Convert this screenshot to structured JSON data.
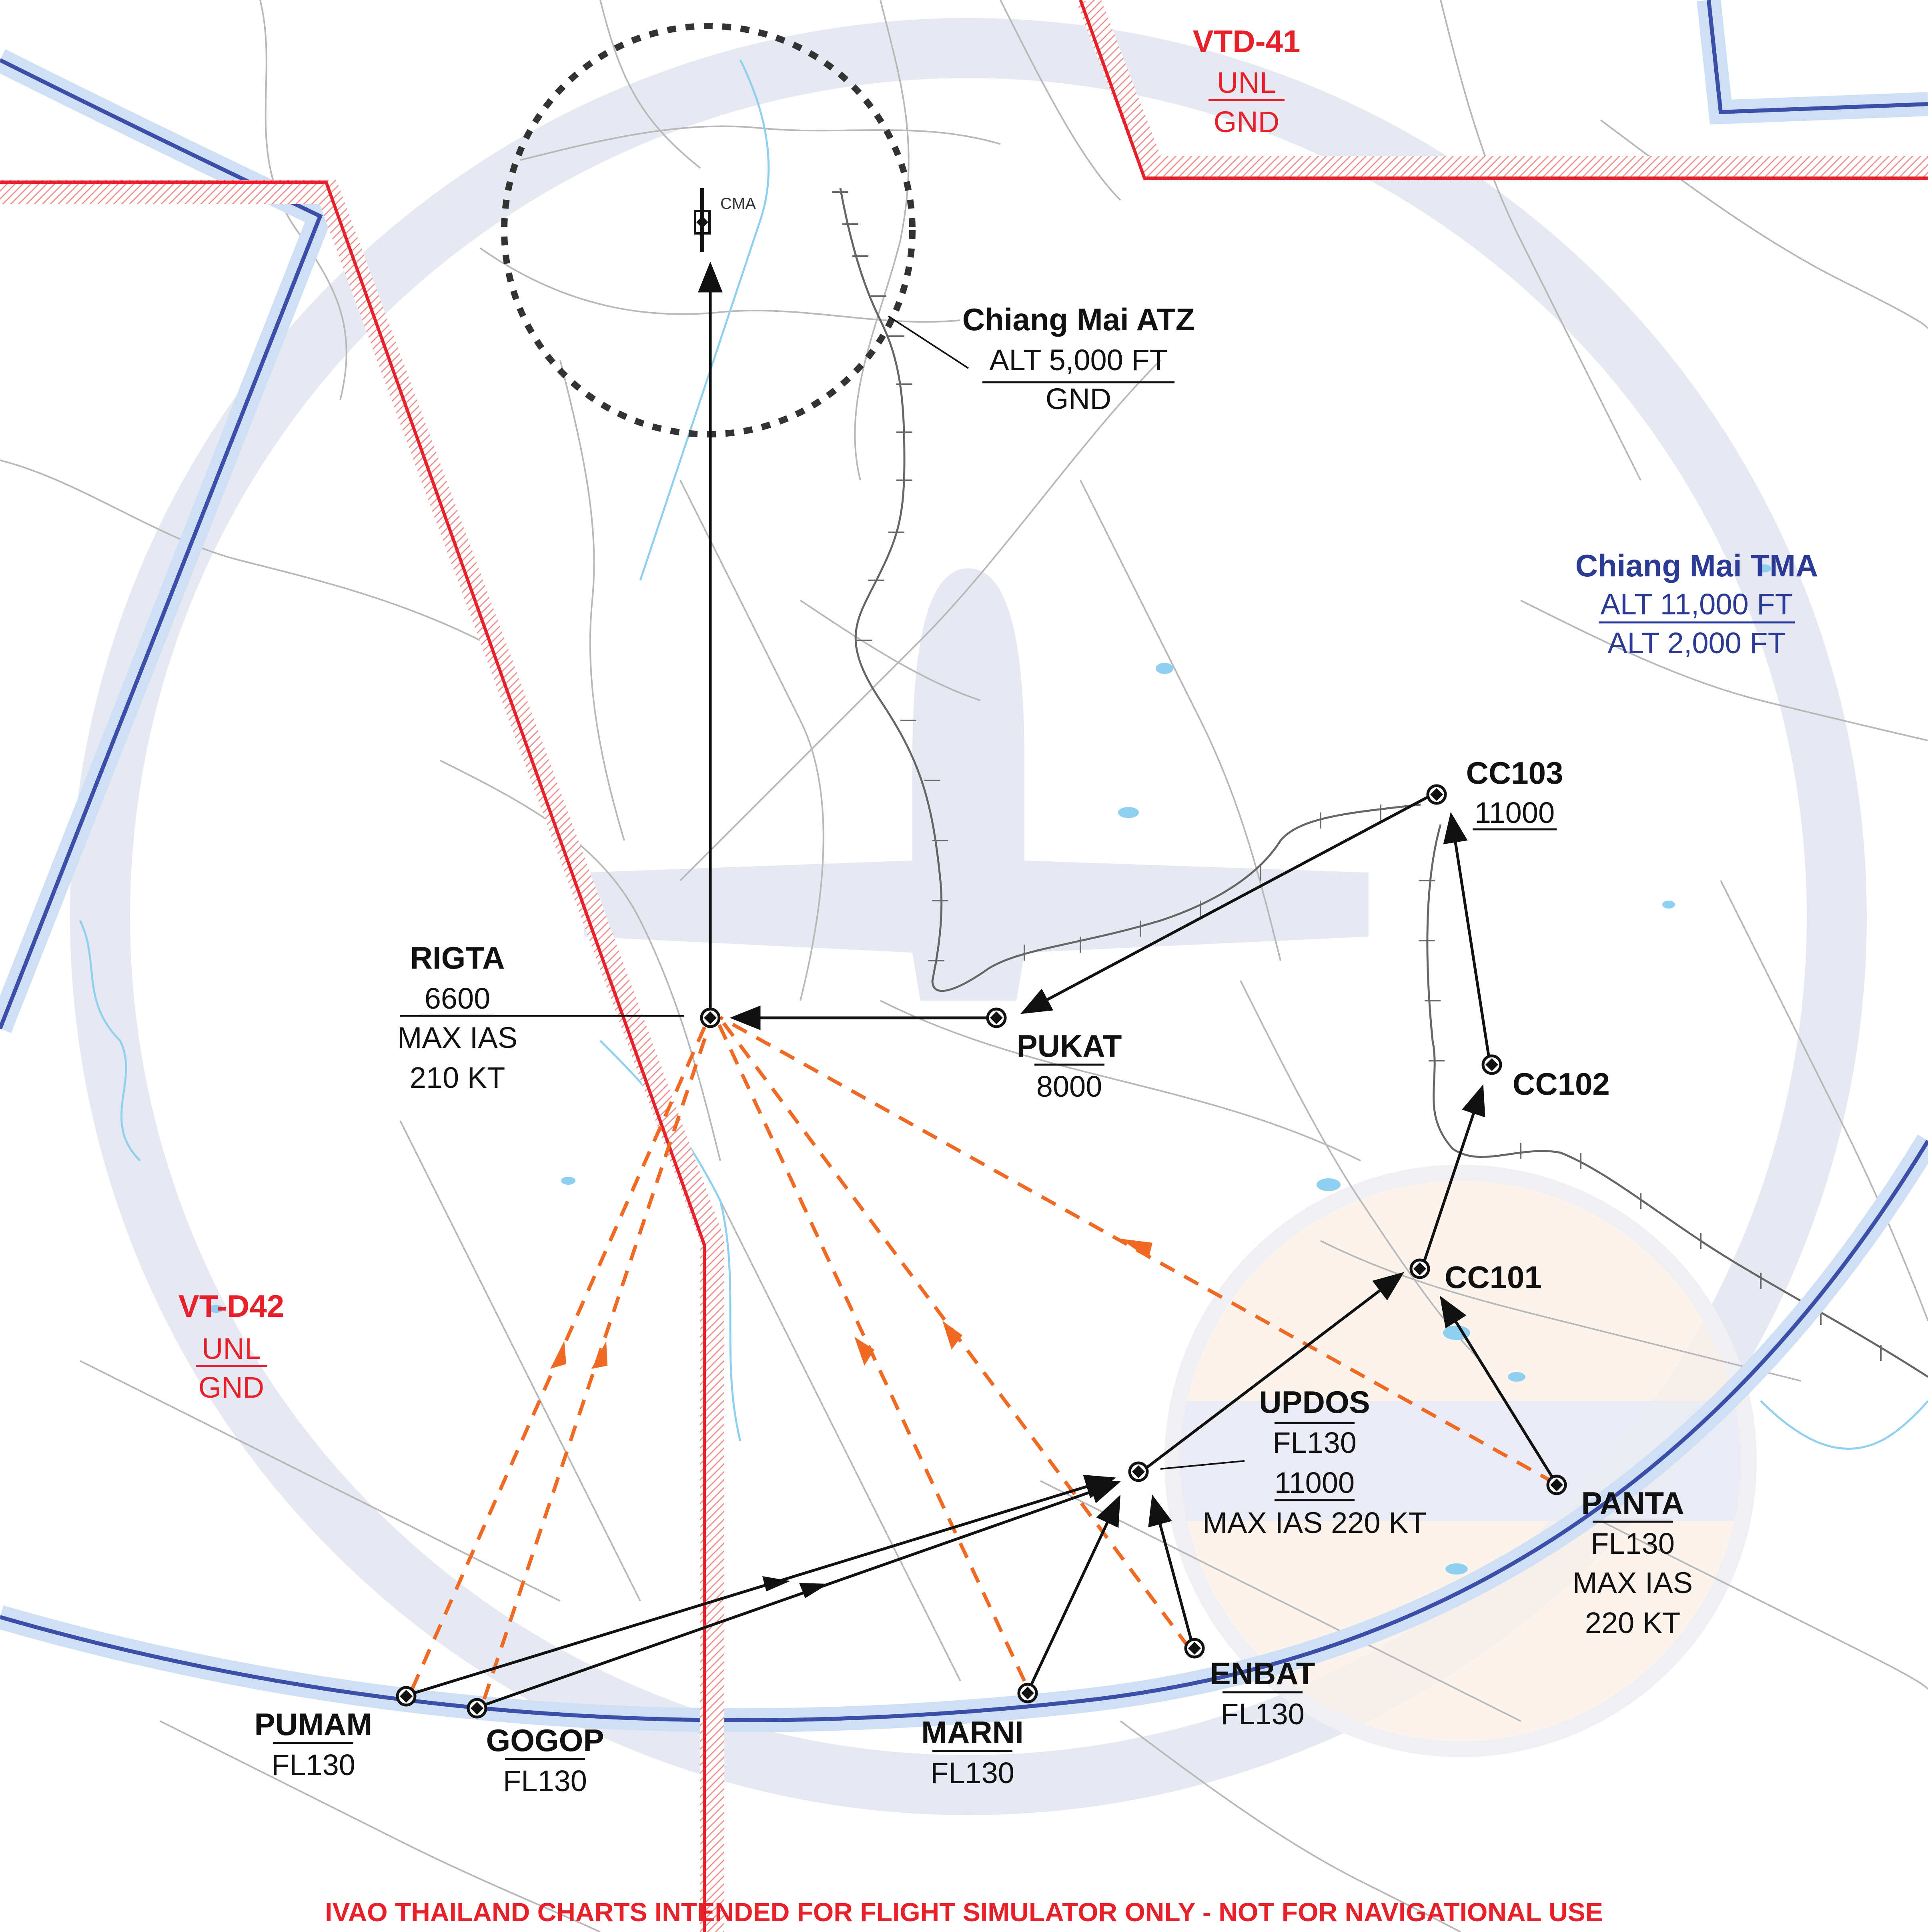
{
  "airspaces": {
    "vtd41": {
      "name": "VTD-41",
      "upper": "UNL",
      "lower": "GND",
      "color": "#e8202a"
    },
    "vtd42": {
      "name": "VT-D42",
      "upper": "UNL",
      "lower": "GND",
      "color": "#e8202a"
    },
    "tma": {
      "name": "Chiang Mai TMA",
      "upper": "ALT 11,000 FT",
      "lower": "ALT 2,000 FT",
      "color": "#2b3a94"
    },
    "atz": {
      "name": "Chiang Mai ATZ",
      "upper": "ALT 5,000 FT",
      "lower": "GND"
    }
  },
  "airport": {
    "code": "CMA"
  },
  "waypoints": {
    "rigta": {
      "name": "RIGTA",
      "alt": "6600",
      "speed_line1": "MAX IAS",
      "speed_line2": "210 KT"
    },
    "pukat": {
      "name": "PUKAT",
      "alt": "8000"
    },
    "cc103": {
      "name": "CC103",
      "alt": "11000"
    },
    "cc102": {
      "name": "CC102"
    },
    "cc101": {
      "name": "CC101"
    },
    "updos": {
      "name": "UPDOS",
      "alt_upper": "FL130",
      "alt_lower": "11000",
      "speed": "MAX IAS 220 KT"
    },
    "panta": {
      "name": "PANTA",
      "alt": "FL130",
      "speed_line1": "MAX IAS",
      "speed_line2": "220 KT"
    },
    "enbat": {
      "name": "ENBAT",
      "alt": "FL130"
    },
    "marni": {
      "name": "MARNI",
      "alt": "FL130"
    },
    "gogop": {
      "name": "GOGOP",
      "alt": "FL130"
    },
    "pumam": {
      "name": "PUMAM",
      "alt": "FL130"
    }
  },
  "colors": {
    "route": "#111111",
    "transition": "#f06a24",
    "restricted": "#e8202a",
    "tma_boundary": "#3b4fa8",
    "tma_halo": "#cfe0f5",
    "water": "#8fd0f0",
    "roads": "#b8b8b8",
    "watermark": "#e6e8f2"
  },
  "disclaimer": "IVAO THAILAND CHARTS INTENDED FOR FLIGHT SIMULATOR ONLY - NOT FOR NAVIGATIONAL USE"
}
